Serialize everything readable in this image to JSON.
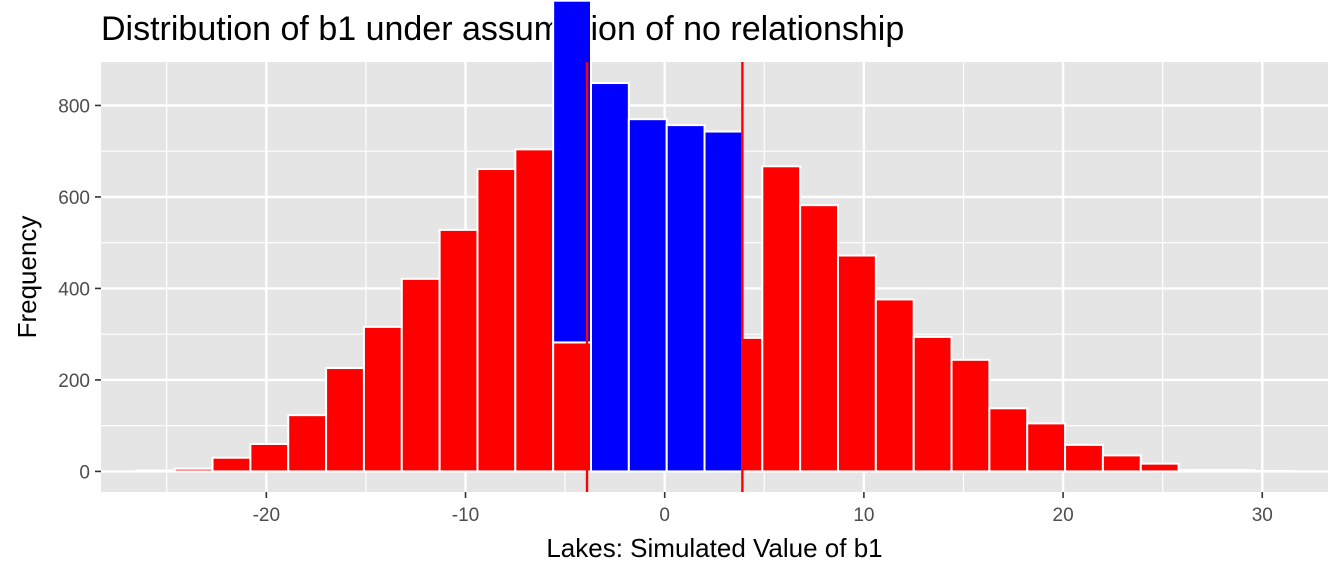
{
  "chart_data": {
    "type": "bar",
    "title": "Distribution of b1 under assumption of no relationship",
    "xlabel": "Lakes: Simulated Value of b1",
    "ylabel": "Frequency",
    "xlim": [
      -28.3,
      33.3
    ],
    "ylim": [
      -45,
      895
    ],
    "x_ticks": [
      -20,
      -10,
      0,
      10,
      20,
      30
    ],
    "y_ticks": [
      0,
      200,
      400,
      600,
      800
    ],
    "bin_width": 1.9,
    "vlines": [
      -3.9,
      3.9
    ],
    "colors": {
      "panel": "#e5e5e5",
      "grid": "#ffffff",
      "bar_outline": "#ffffff",
      "tail": "#ff0000",
      "middle": "#0000ff",
      "vline": "#ff0000",
      "tick_label": "#4d4d4d"
    },
    "series": [
      {
        "color": "tail",
        "bins": [
          {
            "x": -25.55,
            "count": 2
          },
          {
            "x": -23.65,
            "count": 6
          },
          {
            "x": -21.75,
            "count": 30
          },
          {
            "x": -19.85,
            "count": 60
          },
          {
            "x": -17.95,
            "count": 123
          },
          {
            "x": -16.05,
            "count": 226
          },
          {
            "x": -14.15,
            "count": 316
          },
          {
            "x": -12.25,
            "count": 421
          },
          {
            "x": -10.35,
            "count": 528
          },
          {
            "x": -8.45,
            "count": 661
          },
          {
            "x": -6.55,
            "count": 704
          },
          {
            "x": -4.65,
            "count": 282
          },
          {
            "x": 3.95,
            "count": 292
          },
          {
            "x": 5.85,
            "count": 667
          },
          {
            "x": 7.75,
            "count": 582
          },
          {
            "x": 9.65,
            "count": 472
          },
          {
            "x": 11.55,
            "count": 376
          },
          {
            "x": 13.45,
            "count": 294
          },
          {
            "x": 15.35,
            "count": 244
          },
          {
            "x": 17.25,
            "count": 138
          },
          {
            "x": 19.15,
            "count": 105
          },
          {
            "x": 21.05,
            "count": 58
          },
          {
            "x": 22.95,
            "count": 35
          },
          {
            "x": 24.85,
            "count": 17
          },
          {
            "x": 26.75,
            "count": 3
          },
          {
            "x": 28.65,
            "count": 3
          },
          {
            "x": 30.55,
            "count": 1
          }
        ]
      },
      {
        "color": "middle",
        "bins": [
          {
            "x": -4.65,
            "count": 747
          },
          {
            "x": -2.75,
            "count": 849
          },
          {
            "x": -0.85,
            "count": 770
          },
          {
            "x": 1.05,
            "count": 757
          },
          {
            "x": 2.95,
            "count": 743
          }
        ]
      }
    ]
  }
}
